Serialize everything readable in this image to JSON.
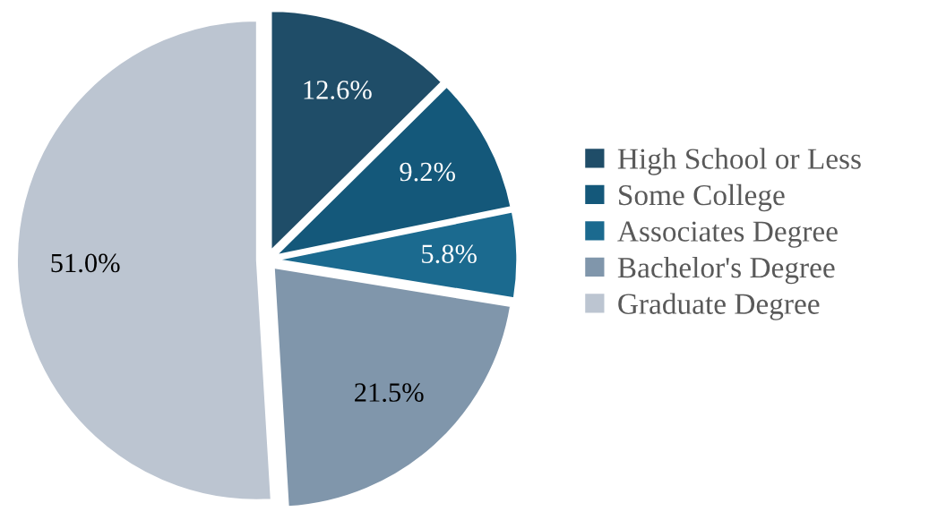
{
  "chart_data": {
    "type": "pie",
    "categories": [
      "High School or Less",
      "Some College",
      "Associates Degree",
      "Bachelor's Degree",
      "Graduate Degree"
    ],
    "values": [
      12.6,
      9.2,
      5.8,
      21.5,
      51.0
    ],
    "value_labels": [
      "12.6%",
      "9.2%",
      "5.8%",
      "21.5%",
      "51.0%"
    ],
    "colors": [
      "#1f4d68",
      "#14587a",
      "#1b6a8f",
      "#8096ab",
      "#bcc5d1"
    ],
    "legend": "right"
  }
}
